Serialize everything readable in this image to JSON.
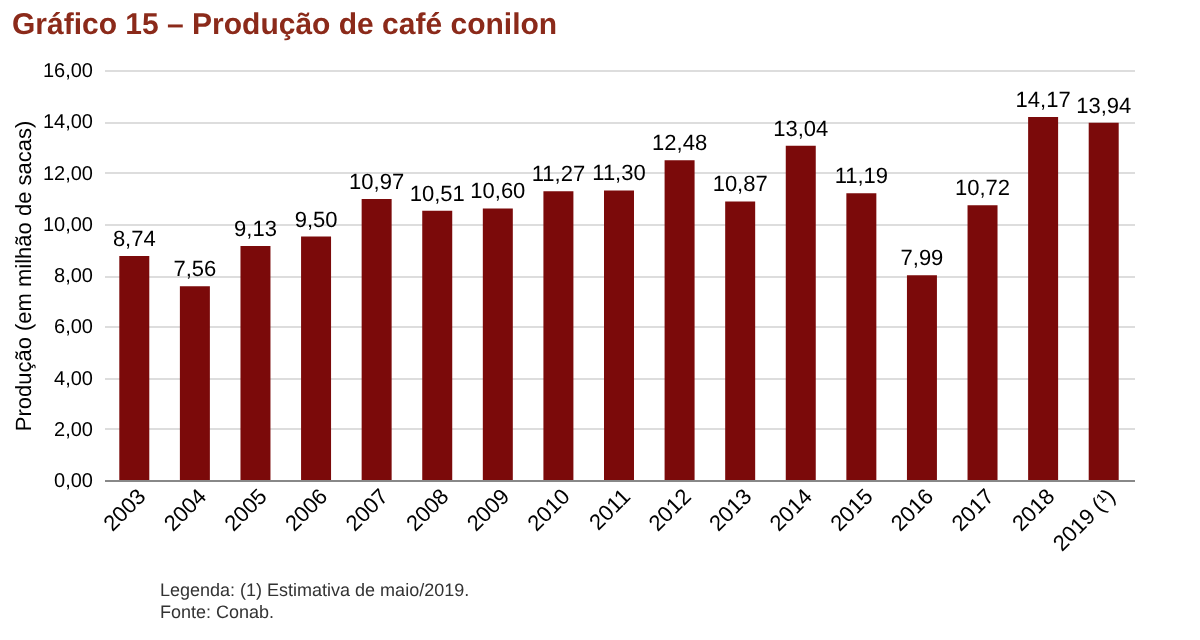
{
  "chart_data": {
    "type": "bar",
    "title": "Gráfico 15 – Produção de café conilon",
    "ylabel": "Produção (em milhão de sacas)",
    "categories": [
      "2003",
      "2004",
      "2005",
      "2006",
      "2007",
      "2008",
      "2009",
      "2010",
      "2011",
      "2012",
      "2013",
      "2014",
      "2015",
      "2016",
      "2017",
      "2018",
      "2019 (¹)"
    ],
    "values": [
      8.74,
      7.56,
      9.13,
      9.5,
      10.97,
      10.51,
      10.6,
      11.27,
      11.3,
      12.48,
      10.87,
      13.04,
      11.19,
      7.99,
      10.72,
      14.17,
      13.94
    ],
    "value_labels": [
      "8,74",
      "7,56",
      "9,13",
      "9,50",
      "10,97",
      "10,51",
      "10,60",
      "11,27",
      "11,30",
      "12,48",
      "10,87",
      "13,04",
      "11,19",
      "7,99",
      "10,72",
      "14,17",
      "13,94"
    ],
    "color": "#7b0a0a",
    "ylim": [
      0,
      16
    ],
    "yticks": [
      {
        "value": 0,
        "label": "0,00"
      },
      {
        "value": 2,
        "label": "2,00"
      },
      {
        "value": 4,
        "label": "4,00"
      },
      {
        "value": 6,
        "label": "6,00"
      },
      {
        "value": 8,
        "label": "8,00"
      },
      {
        "value": 10,
        "label": "10,00"
      },
      {
        "value": 12,
        "label": "12,00"
      },
      {
        "value": 14,
        "label": "14,00"
      },
      {
        "value": 16,
        "label": "16,00"
      }
    ],
    "grid": "y",
    "annotations": [
      "Legenda: (1) Estimativa de maio/2019.",
      "Fonte: Conab."
    ]
  }
}
